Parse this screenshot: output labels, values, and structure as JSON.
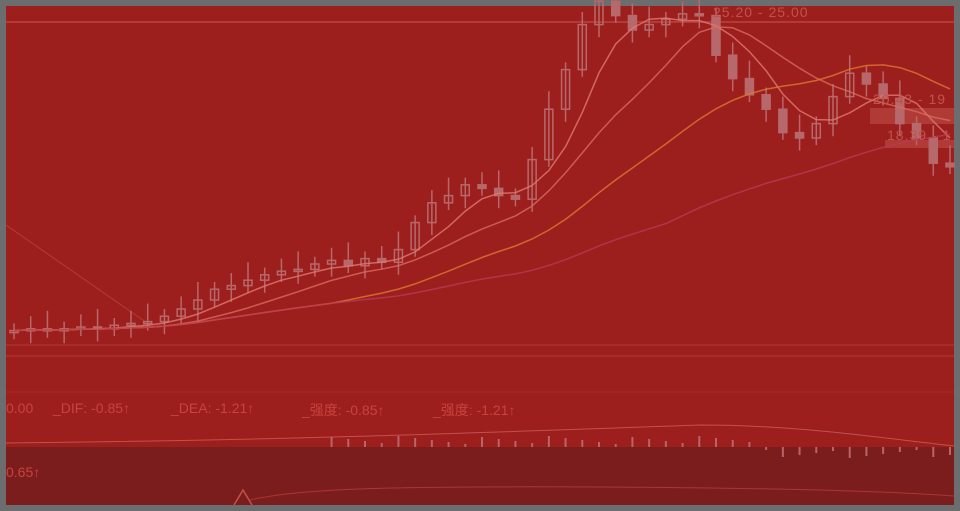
{
  "chart_data": {
    "type": "candlestick",
    "title": "",
    "closes": [
      7.5,
      7.6,
      7.5,
      7.6,
      7.7,
      7.6,
      7.8,
      7.9,
      8.0,
      8.3,
      8.7,
      9.2,
      9.8,
      10.0,
      10.3,
      10.6,
      10.8,
      10.9,
      11.2,
      11.4,
      11.1,
      11.5,
      11.3,
      12.0,
      13.5,
      14.6,
      15.0,
      15.6,
      15.4,
      15.0,
      14.8,
      17.0,
      19.8,
      22.0,
      24.5,
      25.8,
      25.0,
      24.2,
      24.5,
      24.8,
      25.1,
      25.0,
      22.8,
      21.5,
      20.6,
      19.8,
      18.5,
      18.2,
      19.0,
      20.5,
      21.8,
      21.2,
      20.4,
      19.0,
      18.2,
      16.8,
      16.6
    ],
    "price_labels": [
      "25.20 - 25.00",
      "20.43 - 19",
      "18.39 - 1"
    ],
    "moving_averages": [
      {
        "period": 5,
        "color": "#e07a72"
      },
      {
        "period": 10,
        "color": "#d86b5e"
      },
      {
        "period": 20,
        "color": "#e0782f"
      },
      {
        "period": 40,
        "color": "#b83a56"
      }
    ],
    "candle_color": "#b7686a"
  },
  "indicator": {
    "legend": [
      "0.00",
      "_DIF: -0.85↑",
      "_DEA: -1.21↑",
      "_强度: -0.85↑",
      "_强度: -1.21↑"
    ],
    "lower_label": "0.65↑"
  },
  "colors": {
    "background": "#9c1f1e",
    "lower_pane": "#7c1d1d",
    "frame": "#6b6d6e"
  }
}
